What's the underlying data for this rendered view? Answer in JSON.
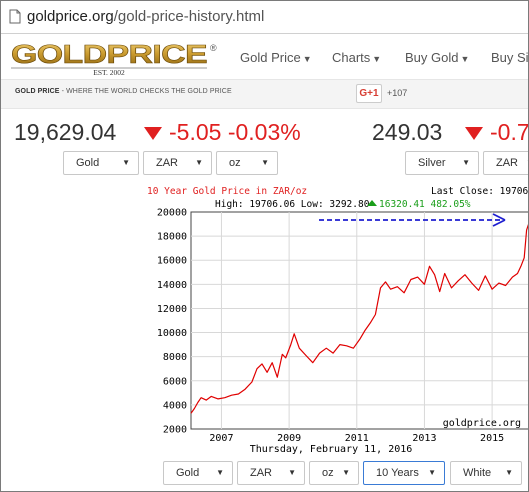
{
  "browser": {
    "url_domain": "goldprice.org",
    "url_path": "/gold-price-history.html"
  },
  "header": {
    "logo_text": "GOLDPRICE",
    "logo_reg": "®",
    "logo_est": "EST. 2002",
    "nav": [
      {
        "label": "Gold Price"
      },
      {
        "label": "Charts"
      },
      {
        "label": "Buy Gold"
      },
      {
        "label": "Buy Si"
      }
    ],
    "tagline_brand": "GOLD PRICE",
    "tagline_rest": " - WHERE THE WORLD CHECKS THE GOLD PRICE",
    "gplus_label": "G+1",
    "gplus_count": "+107"
  },
  "gold": {
    "price": "19,629.04",
    "change": "-5.05",
    "change_pct": "-0.03%",
    "selects": [
      "Gold",
      "ZAR",
      "oz"
    ]
  },
  "silver": {
    "price": "249.03",
    "change": "-0.7",
    "selects": [
      "Silver",
      "ZAR"
    ]
  },
  "controls": {
    "selects": [
      "Gold",
      "ZAR",
      "oz",
      "10 Years",
      "White"
    ]
  },
  "colors": {
    "accent_red": "#e02020",
    "line_red": "#e00000",
    "green": "#1a9e1a",
    "annotation_blue": "#1f1fd0"
  },
  "chart_data": {
    "type": "line",
    "title": "10 Year Gold Price in ZAR/oz",
    "last_close_label": "Last Close: 19706.0",
    "stats_high_low": "High: 19706.06 Low: 3292.80",
    "stats_change": "16320.41 482.05%",
    "watermark": "goldprice.org",
    "date_label": "Thursday, February 11, 2016",
    "xlim": [
      2006.1,
      2016.12
    ],
    "ylim": [
      2000,
      20000
    ],
    "x_ticks": [
      2007,
      2009,
      2011,
      2013,
      2015
    ],
    "y_ticks": [
      2000,
      4000,
      6000,
      8000,
      10000,
      12000,
      14000,
      16000,
      18000,
      20000
    ],
    "series": [
      {
        "x": [
          2006.1,
          2006.2,
          2006.3,
          2006.4,
          2006.55,
          2006.7,
          2006.9,
          2007.1,
          2007.3,
          2007.5,
          2007.7,
          2007.9,
          2008.05,
          2008.2,
          2008.35,
          2008.5,
          2008.65,
          2008.8,
          2008.9,
          2009.05,
          2009.15,
          2009.3,
          2009.5,
          2009.7,
          2009.9,
          2010.1,
          2010.3,
          2010.5,
          2010.7,
          2010.9,
          2011.1,
          2011.25,
          2011.4,
          2011.55,
          2011.7,
          2011.85,
          2012.0,
          2012.2,
          2012.4,
          2012.6,
          2012.8,
          2013.0,
          2013.15,
          2013.3,
          2013.45,
          2013.6,
          2013.8,
          2014.0,
          2014.2,
          2014.4,
          2014.6,
          2014.8,
          2015.0,
          2015.2,
          2015.4,
          2015.6,
          2015.75,
          2015.85,
          2015.95,
          2016.02,
          2016.08,
          2016.12
        ],
        "y": [
          3300,
          3700,
          4200,
          4600,
          4400,
          4700,
          4500,
          4600,
          4800,
          4900,
          5300,
          5900,
          7000,
          7400,
          6700,
          7500,
          6300,
          8200,
          7900,
          9000,
          9900,
          8700,
          8100,
          7500,
          8300,
          8700,
          8300,
          9000,
          8900,
          8700,
          9500,
          10200,
          10800,
          11500,
          13700,
          14200,
          13600,
          13800,
          13300,
          14400,
          14600,
          14000,
          15500,
          14800,
          13400,
          14900,
          13700,
          14300,
          14800,
          14100,
          13500,
          14700,
          13600,
          14100,
          13900,
          14600,
          14900,
          15500,
          16200,
          18500,
          19000,
          19706
        ]
      }
    ]
  }
}
